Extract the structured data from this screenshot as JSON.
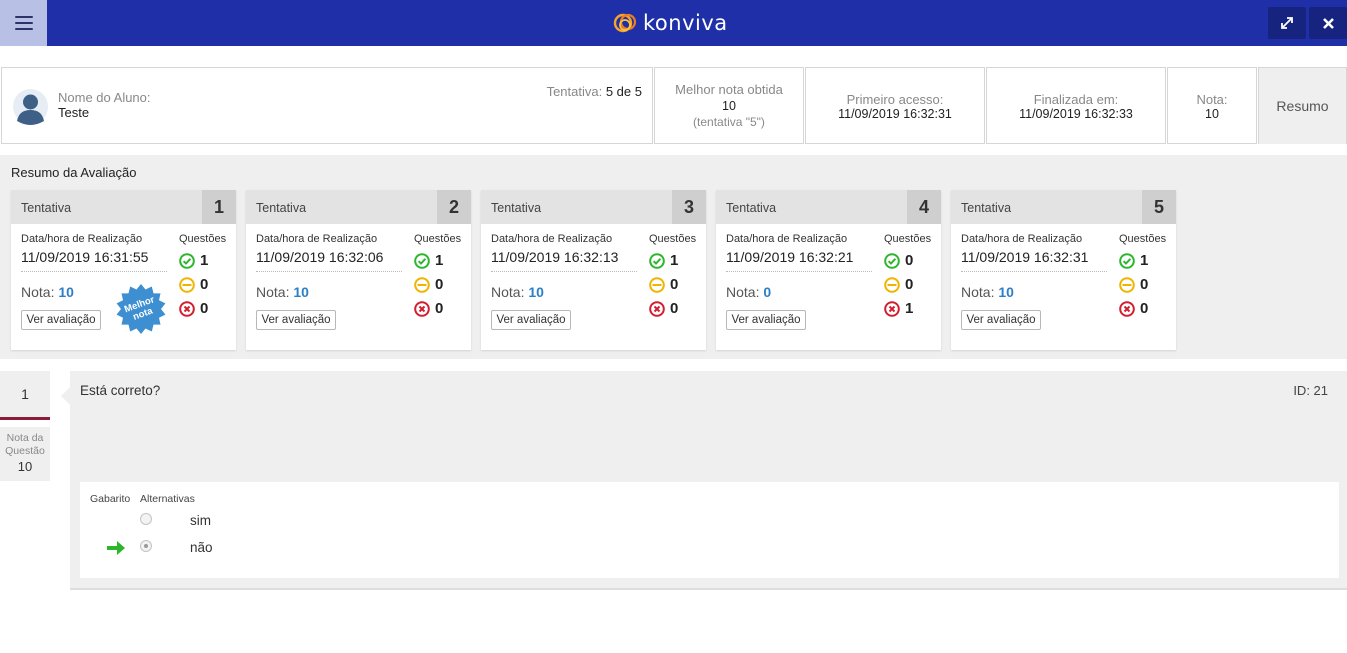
{
  "app": {
    "logo_text": "konviva",
    "brand_color": "#1e2fa8",
    "icons": {
      "menu": "hamburger-icon",
      "expand": "expand-icon",
      "close": "close-icon"
    }
  },
  "header": {
    "student_label": "Nome do Aluno:",
    "student_name": "Teste",
    "attempt_label": "Tentativa:",
    "attempt_value": "5 de 5",
    "best_label": "Melhor nota obtida",
    "best_value": "10",
    "best_sub": "(tentativa \"5\")",
    "first_access_label": "Primeiro acesso:",
    "first_access_value": "11/09/2019 16:32:31",
    "finished_label": "Finalizada em:",
    "finished_value": "11/09/2019 16:32:33",
    "grade_label": "Nota:",
    "grade_value": "10",
    "resumo_tab": "Resumo"
  },
  "summary": {
    "title": "Resumo da Avaliação",
    "card_label": "Tentativa",
    "date_label": "Data/hora de Realização",
    "questions_label": "Questões",
    "grade_label": "Nota:",
    "view_button": "Ver avaliação",
    "best_badge": "Melhor nota",
    "attempts": [
      {
        "number": "1",
        "date": "11/09/2019 16:31:55",
        "grade": "10",
        "correct": "1",
        "partial": "0",
        "wrong": "0"
      },
      {
        "number": "2",
        "date": "11/09/2019 16:32:06",
        "grade": "10",
        "correct": "1",
        "partial": "0",
        "wrong": "0"
      },
      {
        "number": "3",
        "date": "11/09/2019 16:32:13",
        "grade": "10",
        "correct": "1",
        "partial": "0",
        "wrong": "0"
      },
      {
        "number": "4",
        "date": "11/09/2019 16:32:21",
        "grade": "0",
        "correct": "0",
        "partial": "0",
        "wrong": "1"
      },
      {
        "number": "5",
        "date": "11/09/2019 16:32:31",
        "grade": "10",
        "correct": "1",
        "partial": "0",
        "wrong": "0"
      }
    ],
    "colors": {
      "correct": "#2db52d",
      "partial": "#f0b400",
      "wrong": "#d21f2f",
      "grade": "#2b7fc7",
      "badge": "#3d8fd1"
    }
  },
  "question": {
    "index": "1",
    "score_label": "Nota da Questão",
    "score_value": "10",
    "text": "Está correto?",
    "id_text": "ID: 21",
    "answer_key_label": "Gabarito",
    "alternatives_label": "Alternativas",
    "alternatives": [
      "sim",
      "não"
    ],
    "selected_index": 1,
    "correct_index": 1
  }
}
